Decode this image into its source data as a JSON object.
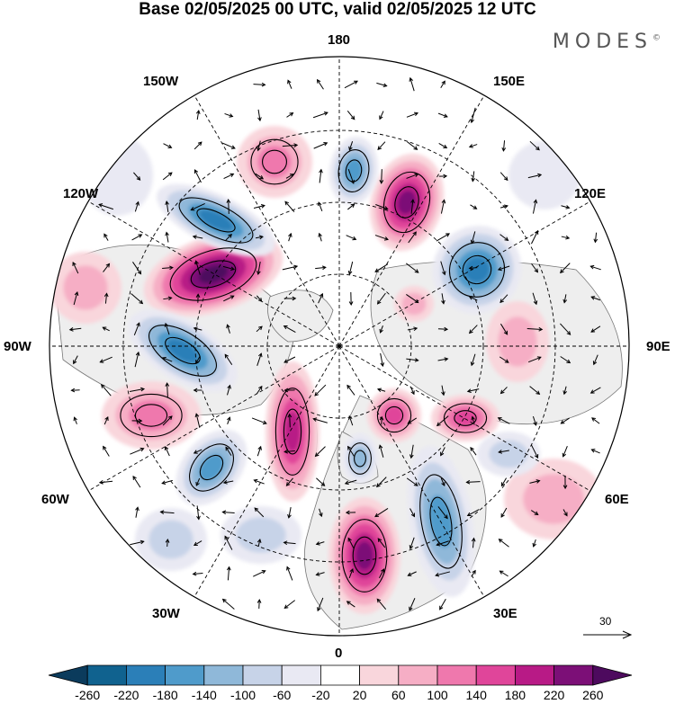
{
  "title": "Base 02/05/2025 00 UTC, valid 02/05/2025 12 UTC",
  "brand": "MODES",
  "brand_mark": "©",
  "longitude_labels": {
    "top": "180",
    "top_left": "150W",
    "top_right": "150E",
    "upper_left": "120W",
    "upper_right": "120E",
    "left": "90W",
    "right": "90E",
    "lower_left": "60W",
    "lower_right": "60E",
    "bottom_left": "30W",
    "bottom_right": "30E",
    "bottom": "0"
  },
  "reference_vector": {
    "label": "30"
  },
  "colorbar": {
    "ticks": [
      "-260",
      "-220",
      "-180",
      "-140",
      "-100",
      "-60",
      "-20",
      "20",
      "60",
      "100",
      "140",
      "180",
      "220",
      "260"
    ],
    "colors": [
      "#0b3b5c",
      "#10628f",
      "#2b7fb8",
      "#4f9bcb",
      "#8fb8d9",
      "#c7d3e8",
      "#e9e9f3",
      "#ffffff",
      "#f9d6dc",
      "#f6aec5",
      "#ef78ad",
      "#e0459a",
      "#b81a86",
      "#7c0f77",
      "#4d0a5e"
    ]
  },
  "map_colors": {
    "land_fill": "#eeeeee",
    "coastline": "#777777",
    "grid": "#000000"
  }
}
